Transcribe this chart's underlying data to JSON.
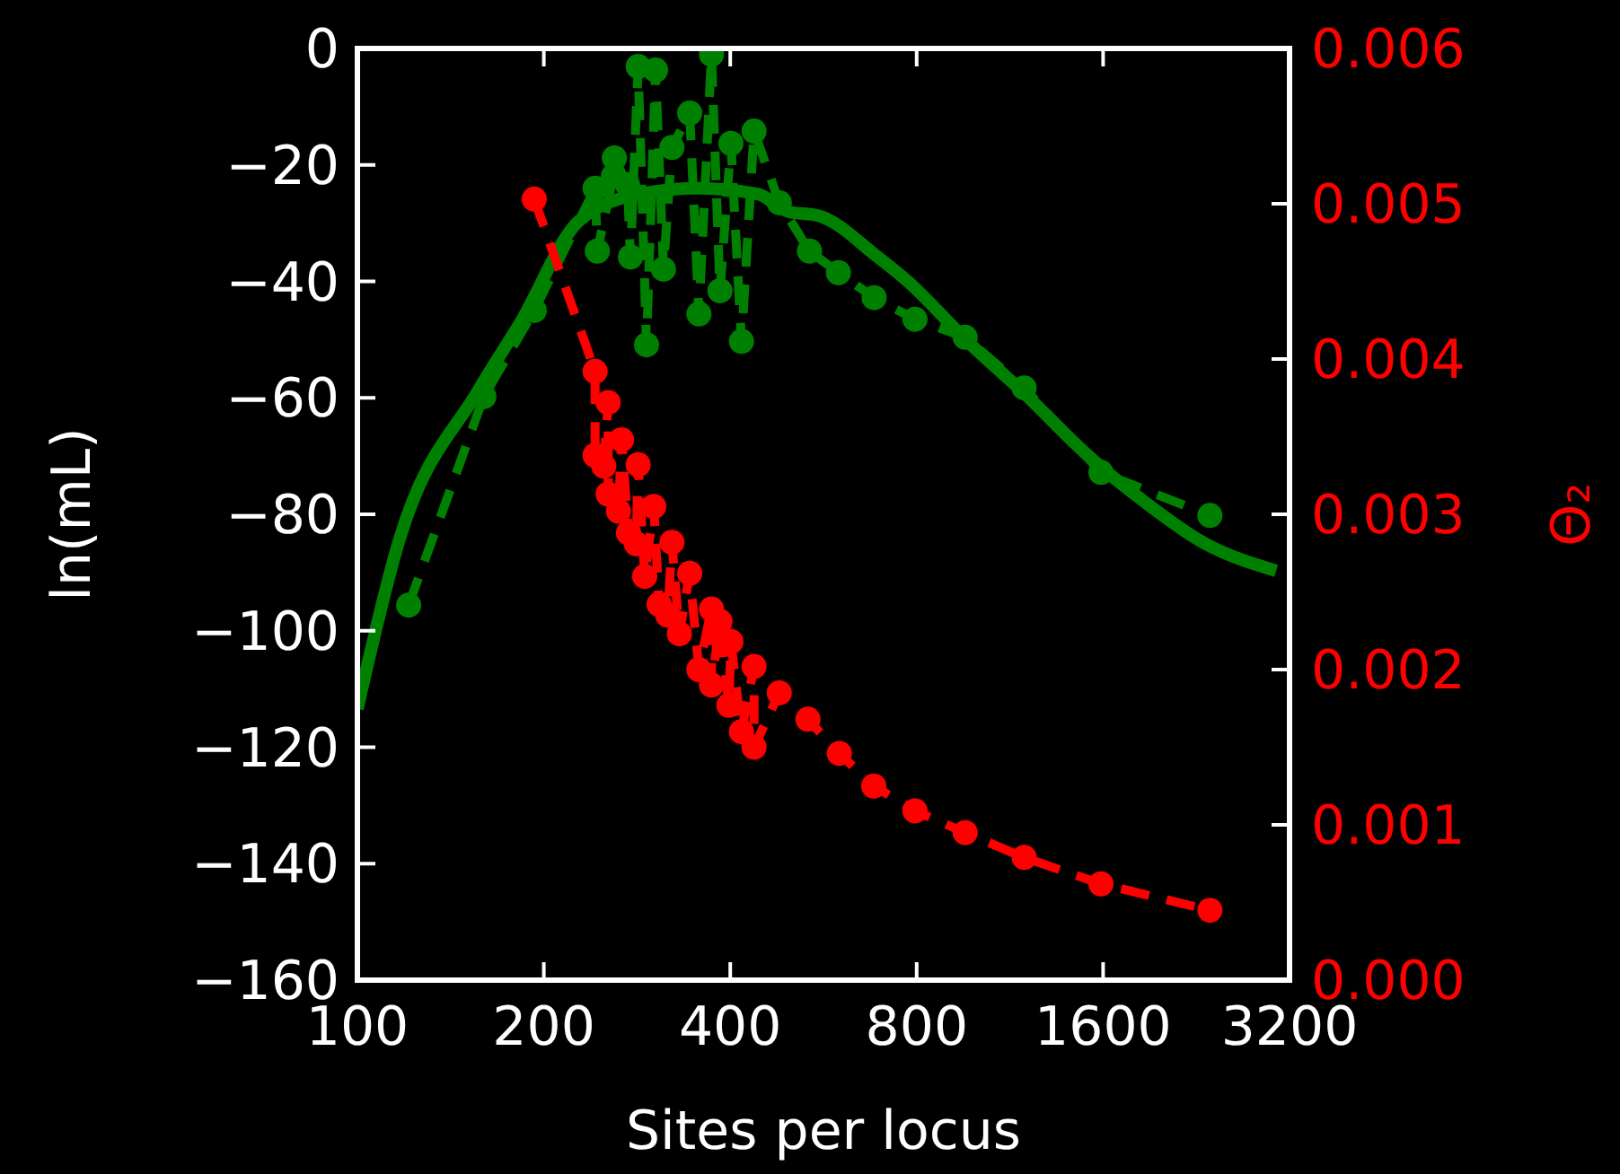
{
  "chart_data": {
    "type": "line",
    "xlabel": "Sites per locus",
    "ylabel": "ln(mL)",
    "y2label": "Θ₂",
    "log": "x",
    "grid": false,
    "xlim": [
      100,
      3200
    ],
    "xticks": [
      100,
      200,
      400,
      800,
      1600,
      3200
    ],
    "ylim": [
      -160,
      0
    ],
    "yticks": [
      {
        "value": -160,
        "label": "−160"
      },
      {
        "value": -140,
        "label": "−140"
      },
      {
        "value": -120,
        "label": "−120"
      },
      {
        "value": -100,
        "label": "−100"
      },
      {
        "value": -80,
        "label": "−80"
      },
      {
        "value": -60,
        "label": "−60"
      },
      {
        "value": -40,
        "label": "−40"
      },
      {
        "value": -20,
        "label": "−20"
      },
      0
    ],
    "y2lim": [
      0,
      0.006
    ],
    "y2ticks": [
      {
        "value": 0,
        "label": "0.000"
      },
      {
        "value": 0.001,
        "label": "0.001"
      },
      {
        "value": 0.002,
        "label": "0.002"
      },
      {
        "value": 0.003,
        "label": "0.003"
      },
      {
        "value": 0.004,
        "label": "0.004"
      },
      {
        "value": 0.005,
        "label": "0.005"
      },
      {
        "value": 0.006,
        "label": "0.006"
      }
    ],
    "series": [
      {
        "color": "#008000",
        "marker": "none",
        "line_style": "solid",
        "x": [
          100,
          117,
          157,
          183,
          228,
          286,
          356,
          443,
          496,
          555,
          692,
          774,
          964,
          1201,
          1505,
          1874,
          2335,
          3045
        ],
        "values": [
          -113.4,
          -84.2,
          -58.6,
          -47.2,
          -29.6,
          -25,
          -24,
          -25,
          -28,
          -28.7,
          -35.8,
          -40,
          -50.2,
          -59.5,
          -69.7,
          -78,
          -85,
          -89.7
        ]
      },
      {
        "color": "#008000",
        "marker": "circle",
        "line_style": "dashed",
        "x": [
          121,
          160,
          193,
          242,
          244,
          259,
          260,
          273,
          276,
          284,
          293,
          303,
          312,
          322,
          344,
          356,
          373,
          385,
          401,
          417,
          437,
          480,
          537,
          598,
          683,
          795,
          958,
          1193,
          1587,
          2380
        ],
        "values": [
          -95.6,
          -59.8,
          -45,
          -24,
          -34.8,
          -21.9,
          -18.8,
          -23.4,
          -35.8,
          -3.1,
          -50.9,
          -3.7,
          -37.9,
          -17,
          -11.1,
          -45.6,
          -1,
          -41.6,
          -16.3,
          -50.3,
          -14.2,
          -26.5,
          -34.8,
          -38.5,
          -42.8,
          -46.5,
          -49.6,
          -58.3,
          -72.8,
          -80.2
        ]
      },
      {
        "color": "#ff0000",
        "marker": "circle",
        "line_style": "dashed",
        "axis": "y2",
        "x": [
          193,
          242,
          242,
          250,
          254,
          254,
          264,
          267,
          274,
          282,
          284,
          291,
          301,
          307,
          317,
          322,
          331,
          344,
          356,
          373,
          373,
          385,
          398,
          401,
          417,
          437,
          437,
          480,
          534,
          600,
          682,
          795,
          958,
          1193,
          1587,
          2380
        ],
        "values": [
          0.00503,
          0.00392,
          0.00338,
          0.00331,
          0.00372,
          0.00313,
          0.00302,
          0.00348,
          0.00288,
          0.00281,
          0.00332,
          0.0026,
          0.00305,
          0.00242,
          0.00235,
          0.00282,
          0.00223,
          0.00262,
          0.002,
          0.00239,
          0.0019,
          0.00231,
          0.00177,
          0.00218,
          0.0016,
          0.00202,
          0.0015,
          0.00185,
          0.00168,
          0.00146,
          0.00125,
          0.00109,
          0.00095,
          0.00079,
          0.00062,
          0.00045
        ]
      }
    ]
  }
}
